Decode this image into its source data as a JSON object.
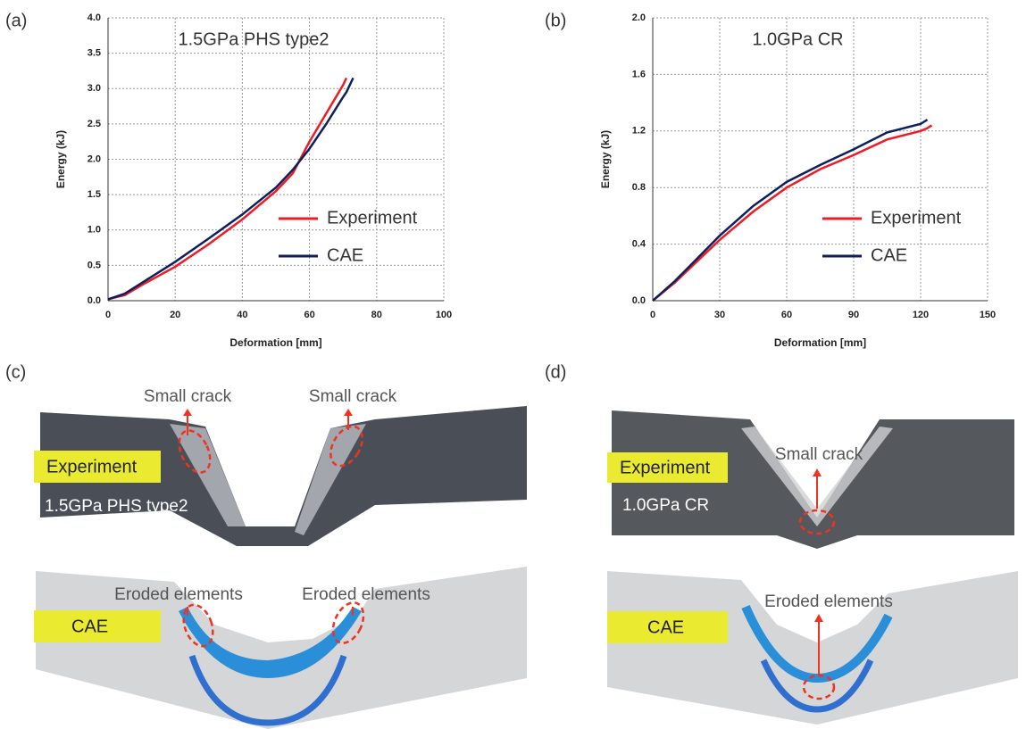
{
  "chart_data": [
    {
      "type": "line",
      "annotation": "1.5GPa PHS type2",
      "xlabel": "Deformation [mm]",
      "ylabel": "Energy (kJ)",
      "x": [
        0,
        5,
        10,
        20,
        30,
        40,
        50,
        55,
        60,
        65,
        70,
        71,
        73
      ],
      "series": [
        {
          "name": "Experiment",
          "color": "#ee1c25",
          "values": [
            0.02,
            0.08,
            0.22,
            0.48,
            0.8,
            1.15,
            1.55,
            1.8,
            2.25,
            2.65,
            3.05,
            3.15,
            null
          ]
        },
        {
          "name": "CAE",
          "color": "#0d1f5c",
          "values": [
            0.02,
            0.1,
            0.25,
            0.55,
            0.88,
            1.22,
            1.6,
            1.85,
            2.15,
            2.5,
            2.88,
            2.95,
            3.15
          ]
        }
      ],
      "xlim": [
        0,
        100
      ],
      "xticks": [
        0,
        20,
        40,
        60,
        80,
        100
      ],
      "ylim": [
        0,
        4
      ],
      "yticks": [
        {
          "value": 0,
          "label": "0.0"
        },
        0.5,
        {
          "value": 1,
          "label": "1.0"
        },
        1.5,
        {
          "value": 2,
          "label": "2.0"
        },
        2.5,
        {
          "value": 3,
          "label": "3.0"
        },
        3.5,
        {
          "value": 4,
          "label": "4.0"
        }
      ],
      "grid": true,
      "legend": "lower right"
    },
    {
      "type": "line",
      "annotation": "1.0GPa CR",
      "xlabel": "Deformation [mm]",
      "ylabel": "Energy (kJ)",
      "x": [
        0,
        10,
        20,
        30,
        45,
        60,
        75,
        90,
        105,
        120,
        123,
        125
      ],
      "series": [
        {
          "name": "Experiment",
          "color": "#ee1c25",
          "values": [
            0,
            0.13,
            0.28,
            0.43,
            0.63,
            0.8,
            0.93,
            1.03,
            1.14,
            1.2,
            1.22,
            1.24
          ]
        },
        {
          "name": "CAE",
          "color": "#0d1f5c",
          "values": [
            0,
            0.14,
            0.3,
            0.46,
            0.67,
            0.84,
            0.96,
            1.07,
            1.19,
            1.25,
            1.28,
            null
          ]
        }
      ],
      "xlim": [
        0,
        150
      ],
      "xticks": [
        0,
        30,
        60,
        90,
        120,
        150
      ],
      "ylim": [
        0,
        2
      ],
      "yticks": [
        {
          "value": 0,
          "label": "0.0"
        },
        0.4,
        0.8,
        1.2,
        1.6,
        {
          "value": 2,
          "label": "2.0"
        }
      ],
      "grid": true,
      "legend": "lower right"
    }
  ],
  "panel_labels": [
    "(a)",
    "(b)",
    "(c)",
    "(d)"
  ],
  "image_panels": [
    {
      "experiment_tag": "Experiment",
      "material": "1.5GPa PHS type2",
      "crack_notes": [
        "Small crack",
        "Small crack"
      ],
      "cae_tag": "CAE",
      "eroded_notes": [
        "Eroded elements",
        "Eroded elements"
      ]
    },
    {
      "experiment_tag": "Experiment",
      "material": "1.0GPa CR",
      "crack_notes": [
        "Small crack"
      ],
      "cae_tag": "CAE",
      "eroded_notes": [
        "Eroded elements"
      ]
    }
  ]
}
